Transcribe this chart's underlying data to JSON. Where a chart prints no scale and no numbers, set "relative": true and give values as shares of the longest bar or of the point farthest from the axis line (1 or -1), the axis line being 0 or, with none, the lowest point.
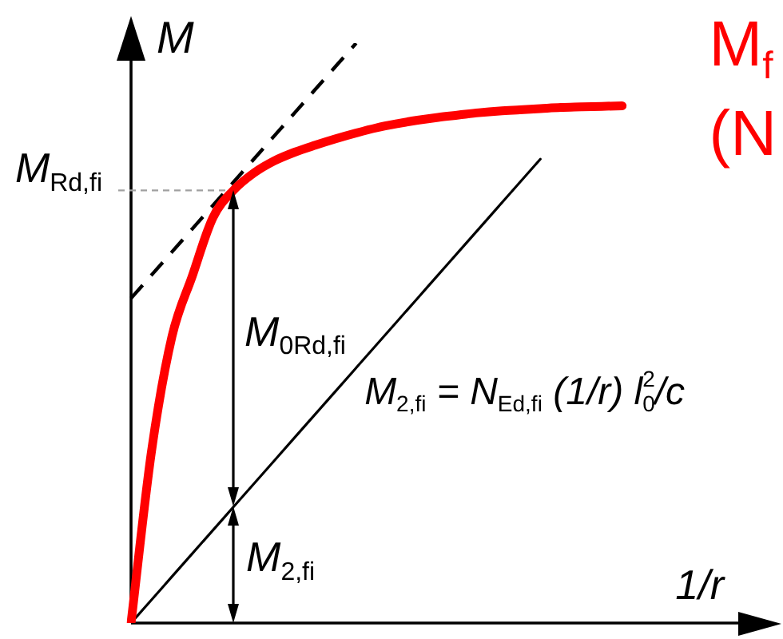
{
  "chart_data": {
    "type": "line",
    "relative": true,
    "xlabel": "1/r",
    "ylabel": "M",
    "marker": "none",
    "categories": [
      null,
      null,
      null,
      null,
      null,
      null,
      null,
      null,
      null,
      null,
      null,
      null,
      null,
      null,
      null,
      null,
      null,
      null,
      null,
      null,
      null,
      null,
      null,
      null,
      null,
      null,
      null,
      null,
      null,
      null,
      null,
      null
    ],
    "series": [
      {
        "name": "M$_{f}$ (N",
        "color": "#ff0000",
        "values": [
          0,
          0.296,
          0.494,
          0.599,
          0.699,
          0.746,
          0.776,
          0.797,
          0.812,
          0.824,
          0.835,
          0.845,
          0.854,
          0.861,
          0.867,
          0.872,
          0.876,
          0.88,
          0.883,
          0.885,
          0.887,
          0.889,
          0.89,
          0.891,
          0.892,
          null,
          null,
          null,
          null,
          null,
          null,
          null
        ]
      },
      {
        "color": "#000000",
        "line_style": "dashed",
        "values": [
          0.56,
          0.6,
          0.64,
          0.68,
          0.72,
          0.76,
          0.8,
          0.84,
          0.88,
          0.92,
          0.96,
          1,
          null,
          null,
          null,
          null,
          null,
          null,
          null,
          null,
          null,
          null,
          null,
          null,
          null,
          null,
          null,
          null,
          null,
          null,
          null,
          null
        ]
      },
      {
        "color": "#000000",
        "values": [
          0,
          0.04,
          0.08,
          0.12,
          0.16,
          0.2,
          0.24,
          0.28,
          0.32,
          0.36,
          0.4,
          0.44,
          0.48,
          0.52,
          0.56,
          0.6,
          0.64,
          0.68,
          0.72,
          0.76,
          0.8,
          null,
          null,
          null,
          null,
          null,
          null,
          null,
          null,
          null,
          null,
          null
        ]
      }
    ],
    "ref_lines": [
      {
        "axis": "y",
        "value": 0.746,
        "label": "M$_{Rd,fi}$",
        "color": "#a0a0a0",
        "line_style": "dashed"
      }
    ],
    "annotations": [
      "M$_{0Rd,fi}$",
      "M$_{2,fi}$",
      "M$_{2,fi}$ = N$_{Ed,fi}$ (1/r) l$_{0}$$^{2}$/c"
    ]
  }
}
